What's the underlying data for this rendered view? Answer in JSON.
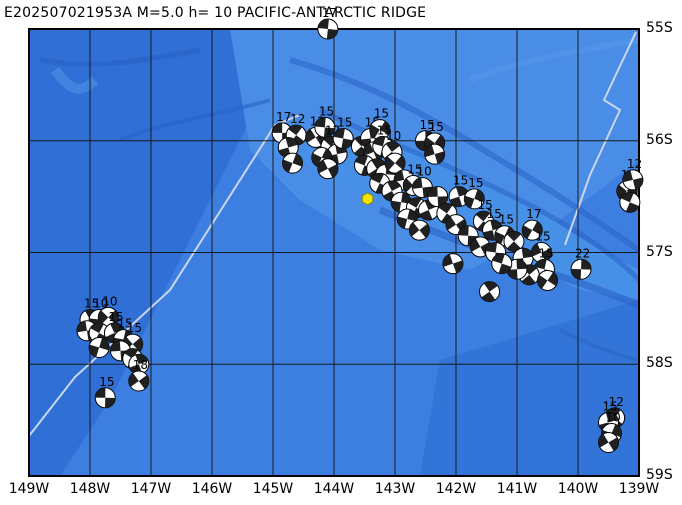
{
  "title": "E202507021953A M=5.0 h= 10 PACIFIC-ANTARCTIC RIDGE",
  "longitude_labels": [
    "149W",
    "148W",
    "147W",
    "146W",
    "145W",
    "144W",
    "143W",
    "142W",
    "141W",
    "140W",
    "139W"
  ],
  "latitude_labels": [
    "55S",
    "56S",
    "57S",
    "58S",
    "59S"
  ],
  "colors": {
    "ocean": "#3d7fe0",
    "deep": "#2d68c8",
    "shallow": "#4a90e6",
    "ridge_line": "#c9d6f0",
    "event_star": "#f2e600",
    "grid": "#1a1a1a"
  },
  "event": {
    "lon": -143.45,
    "lat": -56.52,
    "symbol": "yellow-hexagon"
  },
  "mechanisms": [
    {
      "lon": -144.85,
      "lat": -55.93,
      "label": "17"
    },
    {
      "lon": -144.62,
      "lat": -55.95,
      "label": "12"
    },
    {
      "lon": -144.75,
      "lat": -56.06,
      "label": ""
    },
    {
      "lon": -144.68,
      "lat": -56.2,
      "label": ""
    },
    {
      "lon": -144.3,
      "lat": -55.97,
      "label": "12"
    },
    {
      "lon": -144.15,
      "lat": -55.88,
      "label": "15"
    },
    {
      "lon": -144.05,
      "lat": -56.05,
      "label": "12"
    },
    {
      "lon": -143.95,
      "lat": -56.12,
      "label": ""
    },
    {
      "lon": -144.2,
      "lat": -56.15,
      "label": ""
    },
    {
      "lon": -144.1,
      "lat": -56.25,
      "label": ""
    },
    {
      "lon": -143.85,
      "lat": -55.98,
      "label": "15"
    },
    {
      "lon": -143.55,
      "lat": -56.05,
      "label": ""
    },
    {
      "lon": -143.4,
      "lat": -55.98,
      "label": "15"
    },
    {
      "lon": -143.25,
      "lat": -55.9,
      "label": "15"
    },
    {
      "lon": -143.35,
      "lat": -56.1,
      "label": ""
    },
    {
      "lon": -143.2,
      "lat": -56.05,
      "label": "15"
    },
    {
      "lon": -143.05,
      "lat": -56.1,
      "label": "10"
    },
    {
      "lon": -142.5,
      "lat": -56.0,
      "label": "15"
    },
    {
      "lon": -142.35,
      "lat": -56.02,
      "label": "15"
    },
    {
      "lon": -142.35,
      "lat": -56.12,
      "label": ""
    },
    {
      "lon": -143.5,
      "lat": -56.22,
      "label": ""
    },
    {
      "lon": -143.3,
      "lat": -56.25,
      "label": ""
    },
    {
      "lon": -143.15,
      "lat": -56.3,
      "label": ""
    },
    {
      "lon": -143.0,
      "lat": -56.2,
      "label": ""
    },
    {
      "lon": -142.85,
      "lat": -56.35,
      "label": ""
    },
    {
      "lon": -143.25,
      "lat": -56.38,
      "label": ""
    },
    {
      "lon": -143.05,
      "lat": -56.45,
      "label": ""
    },
    {
      "lon": -142.9,
      "lat": -56.55,
      "label": ""
    },
    {
      "lon": -142.7,
      "lat": -56.4,
      "label": "15"
    },
    {
      "lon": -142.55,
      "lat": -56.42,
      "label": "10"
    },
    {
      "lon": -142.65,
      "lat": -56.6,
      "label": ""
    },
    {
      "lon": -142.45,
      "lat": -56.62,
      "label": ""
    },
    {
      "lon": -142.8,
      "lat": -56.7,
      "label": ""
    },
    {
      "lon": -142.6,
      "lat": -56.8,
      "label": ""
    },
    {
      "lon": -142.3,
      "lat": -56.5,
      "label": ""
    },
    {
      "lon": -142.15,
      "lat": -56.65,
      "label": ""
    },
    {
      "lon": -141.95,
      "lat": -56.5,
      "label": "15"
    },
    {
      "lon": -141.7,
      "lat": -56.52,
      "label": "15"
    },
    {
      "lon": -142.0,
      "lat": -56.75,
      "label": ""
    },
    {
      "lon": -141.8,
      "lat": -56.85,
      "label": ""
    },
    {
      "lon": -141.55,
      "lat": -56.72,
      "label": "15"
    },
    {
      "lon": -141.4,
      "lat": -56.8,
      "label": "15"
    },
    {
      "lon": -141.2,
      "lat": -56.85,
      "label": "15"
    },
    {
      "lon": -141.6,
      "lat": -56.95,
      "label": ""
    },
    {
      "lon": -141.35,
      "lat": -57.0,
      "label": ""
    },
    {
      "lon": -141.05,
      "lat": -56.9,
      "label": ""
    },
    {
      "lon": -140.9,
      "lat": -57.05,
      "label": ""
    },
    {
      "lon": -140.75,
      "lat": -56.8,
      "label": "17"
    },
    {
      "lon": -140.6,
      "lat": -57.0,
      "label": "15"
    },
    {
      "lon": -140.55,
      "lat": -57.15,
      "label": "15"
    },
    {
      "lon": -140.8,
      "lat": -57.2,
      "label": ""
    },
    {
      "lon": -141.0,
      "lat": -57.15,
      "label": ""
    },
    {
      "lon": -140.5,
      "lat": -57.25,
      "label": ""
    },
    {
      "lon": -142.05,
      "lat": -57.1,
      "label": ""
    },
    {
      "lon": -141.25,
      "lat": -57.1,
      "label": ""
    },
    {
      "lon": -141.45,
      "lat": -57.35,
      "label": ""
    },
    {
      "lon": -139.95,
      "lat": -57.15,
      "label": "22"
    },
    {
      "lon": -139.2,
      "lat": -56.45,
      "label": "12"
    },
    {
      "lon": -139.1,
      "lat": -56.35,
      "label": "12"
    },
    {
      "lon": -139.15,
      "lat": -56.55,
      "label": ""
    },
    {
      "lon": -148.0,
      "lat": -57.6,
      "label": "15"
    },
    {
      "lon": -147.85,
      "lat": -57.6,
      "label": "10"
    },
    {
      "lon": -147.7,
      "lat": -57.58,
      "label": "10"
    },
    {
      "lon": -148.05,
      "lat": -57.7,
      "label": ""
    },
    {
      "lon": -147.85,
      "lat": -57.72,
      "label": ""
    },
    {
      "lon": -147.6,
      "lat": -57.72,
      "label": "15"
    },
    {
      "lon": -147.45,
      "lat": -57.78,
      "label": "15"
    },
    {
      "lon": -147.3,
      "lat": -57.82,
      "label": "15"
    },
    {
      "lon": -147.5,
      "lat": -57.88,
      "label": ""
    },
    {
      "lon": -147.3,
      "lat": -57.95,
      "label": ""
    },
    {
      "lon": -147.2,
      "lat": -58.0,
      "label": ""
    },
    {
      "lon": -147.85,
      "lat": -57.85,
      "label": ""
    },
    {
      "lon": -147.2,
      "lat": -58.15,
      "label": "18"
    },
    {
      "lon": -147.75,
      "lat": -58.3,
      "label": "15"
    },
    {
      "lon": -139.4,
      "lat": -58.48,
      "label": "12"
    },
    {
      "lon": -139.5,
      "lat": -58.52,
      "label": "15"
    },
    {
      "lon": -139.45,
      "lat": -58.62,
      "label": "10"
    },
    {
      "lon": -139.5,
      "lat": -58.7,
      "label": ""
    },
    {
      "lon": -144.1,
      "lat": -55.0,
      "label": "17"
    }
  ]
}
